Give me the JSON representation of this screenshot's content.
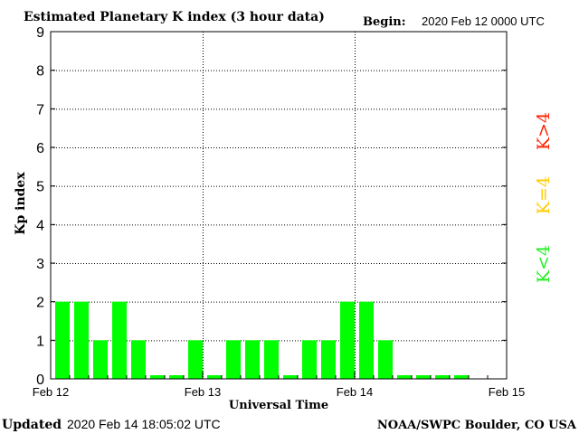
{
  "header": {
    "title": "Estimated Planetary K index (3 hour data)",
    "begin_label": "Begin:",
    "begin_value": "2020 Feb 12 0000 UTC"
  },
  "footer": {
    "updated_label": "Updated",
    "updated_value": "2020 Feb 14 18:05:02 UTC",
    "source": "NOAA/SWPC Boulder, CO USA"
  },
  "legend": {
    "above": {
      "label": "K>4",
      "color": "#ff2200"
    },
    "equal": {
      "label": "K=4",
      "color": "#ffcc00"
    },
    "below": {
      "label": "K<4",
      "color": "#22ee22"
    }
  },
  "chart_data": {
    "type": "bar",
    "title": "Estimated Planetary K index (3 hour data)",
    "xlabel": "Universal Time",
    "ylabel": "Kp index",
    "x_tick_labels": [
      "Feb 12",
      "Feb 13",
      "Feb 14",
      "Feb 15"
    ],
    "y_ticks": [
      0,
      1,
      2,
      3,
      4,
      5,
      6,
      7,
      8,
      9
    ],
    "ylim": [
      0,
      9
    ],
    "interval_hours": 3,
    "grid": true,
    "values": [
      2,
      2,
      1,
      2,
      1,
      0,
      0,
      1,
      0,
      1,
      1,
      1,
      0,
      1,
      1,
      2,
      2,
      1,
      0,
      0,
      0,
      0
    ],
    "bar_color": "#00ff00"
  }
}
